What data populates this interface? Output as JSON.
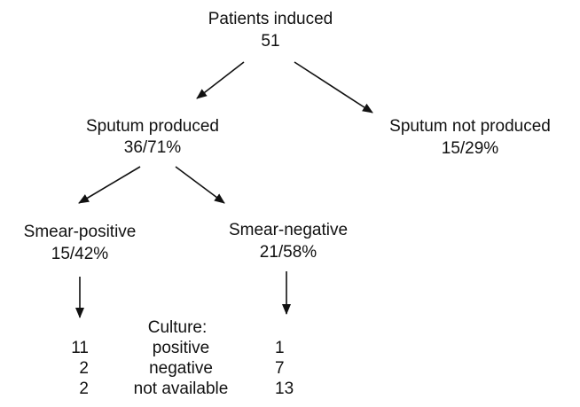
{
  "nodes": [
    {
      "label": "Patients induced",
      "value": "51"
    },
    {
      "label": "Sputum produced",
      "value": "36/71%"
    },
    {
      "label": "Sputum not produced",
      "value": "15/29%"
    },
    {
      "label": "Smear-positive",
      "value": "15/42%"
    },
    {
      "label": "Smear-negative",
      "value": "21/58%"
    }
  ],
  "culture": {
    "title": "Culture:",
    "rows": [
      [
        "11",
        "positive",
        "1"
      ],
      [
        "2",
        "negative",
        "7"
      ],
      [
        "2",
        "not available",
        "13"
      ]
    ]
  }
}
